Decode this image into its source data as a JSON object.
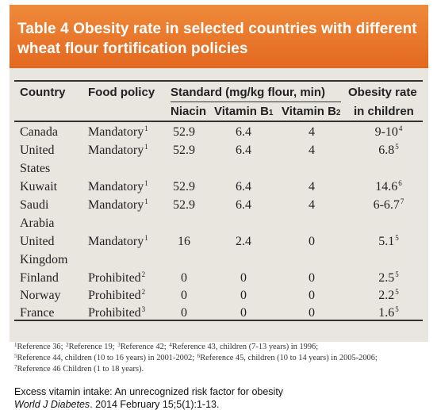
{
  "banner": {
    "line1": "Table 4  Obesity rate in selected countries with different",
    "line2": "wheat flour fortification policies"
  },
  "header": {
    "country": "Country",
    "food_policy": "Food policy",
    "standard": "Standard (mg/kg flour, min)",
    "obesity_line1": "Obesity rate",
    "obesity_line2": "in children",
    "niacin": "Niacin",
    "vitb1": "Vitamin B",
    "vitb1_sub": "1",
    "vitb2": "Vitamin B",
    "vitb2_sub": "2"
  },
  "rows": [
    {
      "country": [
        "Canada"
      ],
      "policy": "Mandatory",
      "policy_ref": "1",
      "niacin": "52.9",
      "b1": "6.4",
      "b2": "4",
      "rate": "9-10",
      "rate_ref": "4"
    },
    {
      "country": [
        "United",
        "States"
      ],
      "policy": "Mandatory",
      "policy_ref": "1",
      "niacin": "52.9",
      "b1": "6.4",
      "b2": "4",
      "rate": "6.8",
      "rate_ref": "5"
    },
    {
      "country": [
        "Kuwait"
      ],
      "policy": "Mandatory",
      "policy_ref": "1",
      "niacin": "52.9",
      "b1": "6.4",
      "b2": "4",
      "rate": "14.6",
      "rate_ref": "6"
    },
    {
      "country": [
        "Saudi",
        "Arabia"
      ],
      "policy": "Mandatory",
      "policy_ref": "1",
      "niacin": "52.9",
      "b1": "6.4",
      "b2": "4",
      "rate": "6-6.7",
      "rate_ref": "7"
    },
    {
      "country": [
        "United",
        "Kingdom"
      ],
      "policy": "Mandatory",
      "policy_ref": "1",
      "niacin": "16",
      "b1": "2.4",
      "b2": "0",
      "rate": "5.1",
      "rate_ref": "5"
    },
    {
      "country": [
        "Finland"
      ],
      "policy": "Prohibited",
      "policy_ref": "2",
      "niacin": "0",
      "b1": "0",
      "b2": "0",
      "rate": "2.5",
      "rate_ref": "5"
    },
    {
      "country": [
        "Norway"
      ],
      "policy": "Prohibited",
      "policy_ref": "2",
      "niacin": "0",
      "b1": "0",
      "b2": "0",
      "rate": "2.2",
      "rate_ref": "5"
    },
    {
      "country": [
        "France"
      ],
      "policy": "Prohibited",
      "policy_ref": "3",
      "niacin": "0",
      "b1": "0",
      "b2": "0",
      "rate": "1.6",
      "rate_ref": "5"
    }
  ],
  "references": [
    [
      {
        "num": "1",
        "text": "Reference 36; "
      },
      {
        "num": "2",
        "text": "Reference 19; "
      },
      {
        "num": "3",
        "text": "Reference 42; "
      },
      {
        "num": "4",
        "text": "Reference 43, children (7-13 years) in 1996;"
      }
    ],
    [
      {
        "num": "5",
        "text": "Reference 44, children (10 to 16 years) in 2001-2002; "
      },
      {
        "num": "6",
        "text": "Reference 45, children (10 to 14 years) in 2005-2006;"
      }
    ],
    [
      {
        "num": "7",
        "text": "Reference 46 Children (1 to 18 years)."
      }
    ]
  ],
  "footer": {
    "line1": "Excess vitamin intake: An unrecognized risk factor for obesity",
    "journal": "World J Diabetes",
    "citation": ". 2014 February 15;5(1):1-13."
  },
  "colors": {
    "banner": "#e8712a",
    "panel": "#e9e6e0",
    "text": "#222222"
  }
}
